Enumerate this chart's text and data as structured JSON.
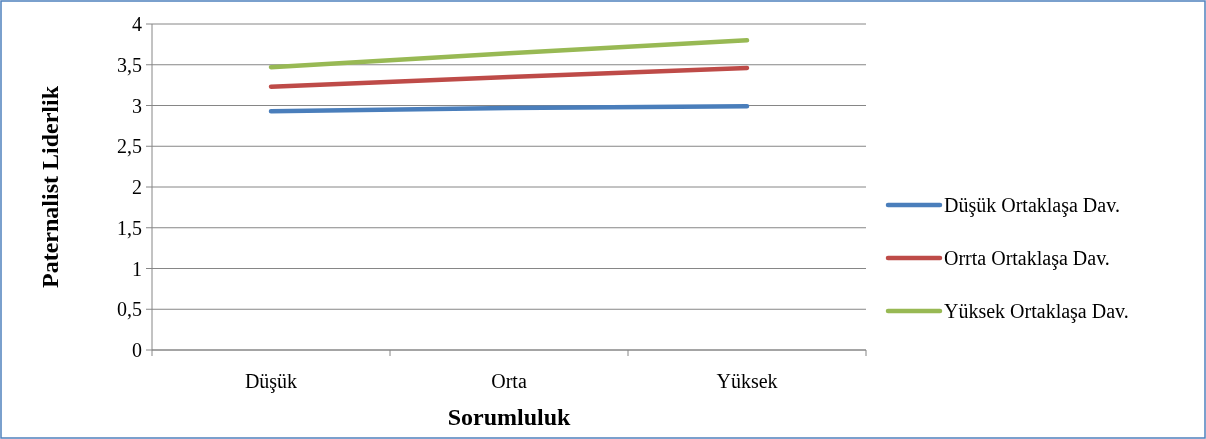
{
  "chart_data": {
    "type": "line",
    "xlabel": "Sorumluluk",
    "ylabel": "Paternalist Liderlik",
    "categories": [
      "Düşük",
      "Orta",
      "Yüksek"
    ],
    "series": [
      {
        "name": "Düşük Ortaklaşa Dav.",
        "color": "#4a7ebb",
        "values": [
          2.93,
          2.97,
          2.99
        ]
      },
      {
        "name": "Orrta Ortaklaşa Dav.",
        "color": "#be4b48",
        "values": [
          3.23,
          3.35,
          3.46
        ]
      },
      {
        "name": "Yüksek Ortaklaşa Dav.",
        "color": "#98b954",
        "values": [
          3.47,
          3.64,
          3.8
        ]
      }
    ],
    "ylim": [
      0,
      4
    ],
    "yticks": [
      0,
      {
        "value": 0.5,
        "label": "0,5"
      },
      1,
      {
        "value": 1.5,
        "label": "1,5"
      },
      2,
      {
        "value": 2.5,
        "label": "2,5"
      },
      3,
      {
        "value": 3.5,
        "label": "3,5"
      },
      4
    ],
    "grid": "y",
    "legend": "right",
    "marker": "none",
    "line_style": "solid"
  }
}
